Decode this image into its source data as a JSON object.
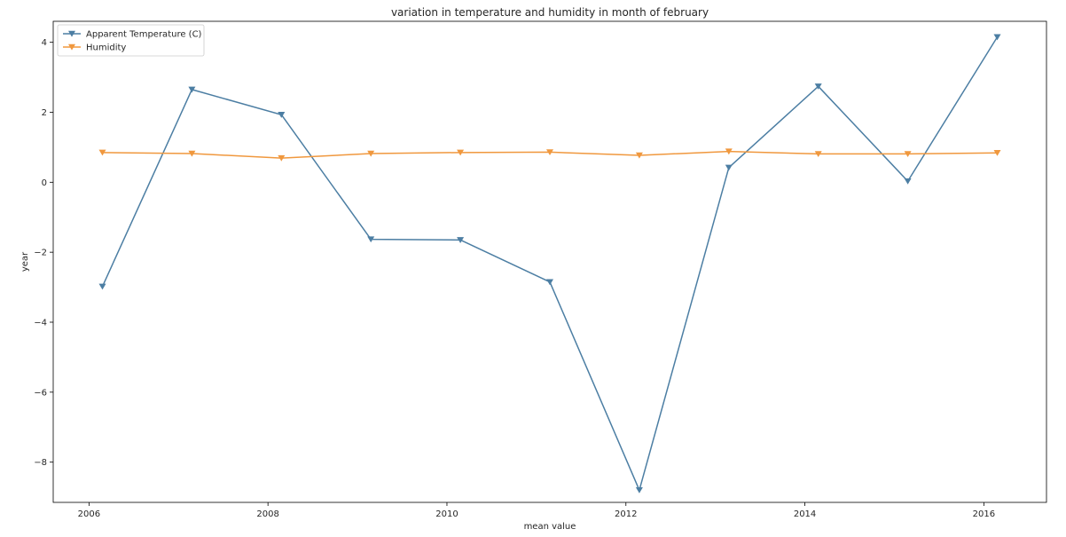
{
  "chart_data": {
    "type": "line",
    "title": "variation in temperature and humidity in month of february",
    "xlabel": "mean value",
    "ylabel": "year",
    "xlim": [
      2005.6,
      2016.7
    ],
    "ylim": [
      -9.15,
      4.6
    ],
    "xticks": [
      2006,
      2008,
      2010,
      2012,
      2014,
      2016
    ],
    "xtick_labels": [
      "2006",
      "2008",
      "2010",
      "2012",
      "2014",
      "2016"
    ],
    "yticks": [
      -8,
      -6,
      -4,
      -2,
      0,
      2,
      4
    ],
    "ytick_labels": [
      "−8",
      "−6",
      "−4",
      "−2",
      "0",
      "2",
      "4"
    ],
    "grid": false,
    "legend_position": "top-left",
    "x": [
      2006.15,
      2007.15,
      2008.15,
      2009.15,
      2010.15,
      2011.15,
      2012.15,
      2013.15,
      2014.15,
      2015.15,
      2016.15
    ],
    "series": [
      {
        "name": "Apparent Temperature (C)",
        "color": "#4c7ea3",
        "marker": "triangle-down",
        "values": [
          -2.98,
          2.65,
          1.93,
          -1.63,
          -1.65,
          -2.85,
          -8.8,
          0.42,
          2.74,
          0.03,
          4.15
        ]
      },
      {
        "name": "Humidity",
        "color": "#f0983e",
        "marker": "triangle-down",
        "values": [
          0.85,
          0.82,
          0.69,
          0.82,
          0.85,
          0.86,
          0.77,
          0.88,
          0.81,
          0.81,
          0.84
        ]
      }
    ]
  }
}
